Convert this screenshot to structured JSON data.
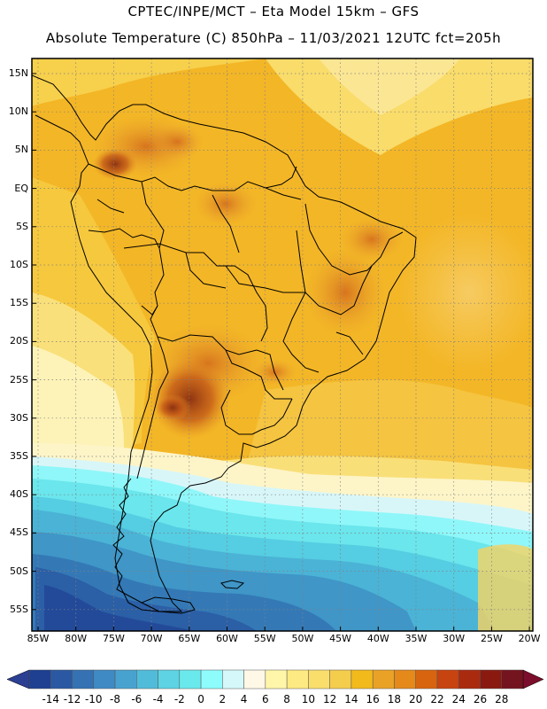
{
  "title": {
    "line1": "CPTEC/INPE/MCT –  Eta Model 15km – GFS",
    "line2": "Absolute Temperature (C) 850hPa – 11/03/2021 12UTC fct=205h"
  },
  "map": {
    "region": "South America",
    "variable": "Absolute Temperature (C) 850hPa",
    "lon_range": [
      -85,
      -20
    ],
    "lat_range": [
      -58,
      16
    ],
    "lat_labels": [
      "15N",
      "10N",
      "5N",
      "EQ",
      "5S",
      "10S",
      "15S",
      "20S",
      "25S",
      "30S",
      "35S",
      "40S",
      "45S",
      "50S",
      "55S"
    ],
    "lon_labels": [
      "85W",
      "80W",
      "75W",
      "70W",
      "65W",
      "60W",
      "55W",
      "50W",
      "45W",
      "40W",
      "35W",
      "30W",
      "25W",
      "20W"
    ]
  },
  "colorbar": {
    "labels": [
      "-14",
      "-12",
      "-10",
      "-8",
      "-6",
      "-4",
      "-2",
      "0",
      "2",
      "4",
      "6",
      "8",
      "10",
      "12",
      "14",
      "16",
      "18",
      "20",
      "22",
      "24",
      "26",
      "28"
    ],
    "colors": [
      "#1f3f91",
      "#2b58a3",
      "#3572b4",
      "#3f8ac4",
      "#48a2cf",
      "#51bcd9",
      "#5dd3e3",
      "#6ae9ec",
      "#8ffcfc",
      "#d5f8fa",
      "#fff8e6",
      "#fff6aa",
      "#feea82",
      "#f9de6c",
      "#f5cd4d",
      "#f3ba1c",
      "#eaa226",
      "#e5891b",
      "#d8640f",
      "#c74310",
      "#aa2a10",
      "#8a1a10",
      "#74141e"
    ],
    "low_arrow_color": "#2b3f93",
    "high_arrow_color": "#7b0e2a"
  }
}
